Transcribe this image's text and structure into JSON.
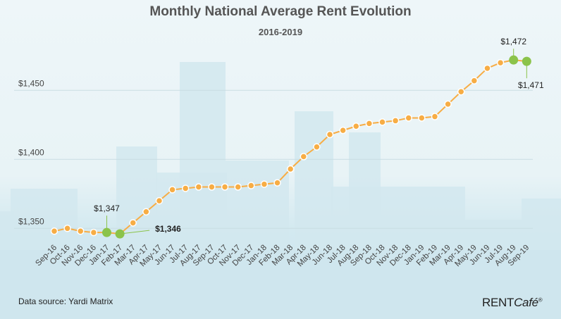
{
  "footer": {
    "source": "Data source: Yardi Matrix",
    "logo": "RENTCafé",
    "logo_mark": "®"
  },
  "chart_data": {
    "type": "line",
    "title": "Monthly National Average Rent Evolution",
    "subtitle": "2016-2019",
    "xlabel": "",
    "ylabel": "",
    "categories": [
      "Sep-16",
      "Oct-16",
      "Nov-16",
      "Dec-16",
      "Jan-17",
      "Feb-17",
      "Mar-17",
      "Apr-17",
      "May-17",
      "Jun-17",
      "Jul-17",
      "Aug-17",
      "Sep-17",
      "Oct-17",
      "Nov-17",
      "Dec-17",
      "Jan-18",
      "Feb-18",
      "Mar-18",
      "Apr-18",
      "May-18",
      "Jun-18",
      "Jul-18",
      "Aug-18",
      "Sep-18",
      "Oct-18",
      "Nov-18",
      "Dec-18",
      "Jan-19",
      "Feb-19",
      "Mar-19",
      "Apr-19",
      "May-19",
      "Jun-19",
      "Jul-19",
      "Aug-19",
      "Sep-19"
    ],
    "values": [
      1348,
      1350,
      1348,
      1347,
      1347,
      1346,
      1354,
      1362,
      1370,
      1378,
      1379,
      1380,
      1380,
      1380,
      1380,
      1381,
      1382,
      1383,
      1393,
      1402,
      1409,
      1418,
      1421,
      1424,
      1426,
      1427,
      1428,
      1430,
      1430,
      1431,
      1440,
      1449,
      1457,
      1466,
      1470,
      1472,
      1471
    ],
    "yticks": [
      {
        "value": 1350,
        "label": "$1,350"
      },
      {
        "value": 1400,
        "label": "$1,400"
      },
      {
        "value": 1450,
        "label": "$1,450"
      }
    ],
    "ylim": [
      1336,
      1480
    ],
    "grid": true,
    "legend": "none",
    "annotations": [
      {
        "category": "Jan-17",
        "label": "$1,347"
      },
      {
        "category": "Feb-17",
        "label": "$1,346"
      },
      {
        "category": "Aug-19",
        "label": "$1,472"
      },
      {
        "category": "Sep-19",
        "label": "$1,471"
      }
    ],
    "colors": {
      "line": "#f7ad45",
      "highlight": "#8bc34a",
      "grid": "#c9dde3",
      "skyline": "#d2e7ee"
    }
  }
}
